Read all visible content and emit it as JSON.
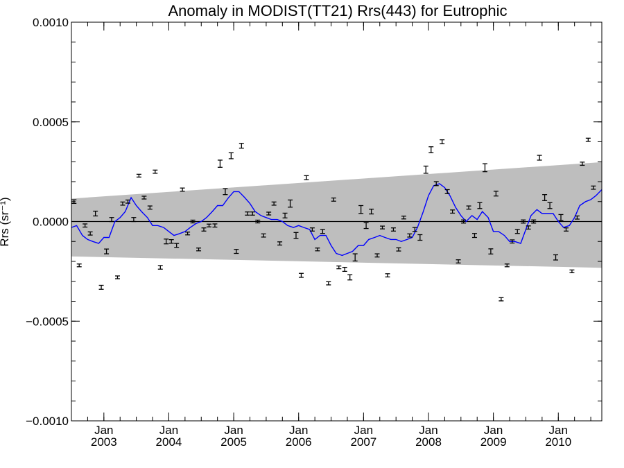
{
  "chart_data": {
    "type": "line",
    "title": "Anomaly in MODIST(TT21) Rrs(443) for Eutrophic",
    "ylabel": "Rrs (sr⁻¹)",
    "xlabel": "",
    "xlim": [
      2002.5,
      2010.67
    ],
    "ylim": [
      -0.001,
      0.001
    ],
    "yticks": [
      "0.0010",
      "0.0005",
      "0.0000",
      "−0.0005",
      "−0.0010"
    ],
    "ytick_values": [
      0.001,
      0.0005,
      0.0,
      -0.0005,
      -0.001
    ],
    "xticks": [
      {
        "month": "Jan",
        "year": "2003",
        "value": 2003
      },
      {
        "month": "Jan",
        "year": "2004",
        "value": 2004
      },
      {
        "month": "Jan",
        "year": "2005",
        "value": 2005
      },
      {
        "month": "Jan",
        "year": "2006",
        "value": 2006
      },
      {
        "month": "Jan",
        "year": "2007",
        "value": 2007
      },
      {
        "month": "Jan",
        "year": "2008",
        "value": 2008
      },
      {
        "month": "Jan",
        "year": "2009",
        "value": 2009
      },
      {
        "month": "Jan",
        "year": "2010",
        "value": 2010
      }
    ],
    "band": {
      "color": "#bebebe",
      "upper": [
        [
          2002.5,
          0.000115
        ],
        [
          2010.67,
          0.000298
        ]
      ],
      "lower": [
        [
          2002.5,
          -0.000175
        ],
        [
          2010.67,
          -0.000232
        ]
      ]
    },
    "zero_line": 0.0,
    "colors": {
      "smoothed": "#0000ff",
      "points": "#000000",
      "band": "#bebebe"
    },
    "series": [
      {
        "values": [
          [
            2002.5,
            -3e-05
          ],
          [
            2002.58,
            -2e-05
          ],
          [
            2002.67,
            -7e-05
          ],
          [
            2002.75,
            -9e-05
          ],
          [
            2002.83,
            -0.0001
          ],
          [
            2002.92,
            -0.00011
          ],
          [
            2003.0,
            -8e-05
          ],
          [
            2003.08,
            -8e-05
          ],
          [
            2003.17,
            0.0
          ],
          [
            2003.25,
            2e-05
          ],
          [
            2003.33,
            5e-05
          ],
          [
            2003.42,
            0.00012
          ],
          [
            2003.5,
            8e-05
          ],
          [
            2003.58,
            5e-05
          ],
          [
            2003.67,
            2e-05
          ],
          [
            2003.75,
            -2e-05
          ],
          [
            2003.83,
            -2e-05
          ],
          [
            2003.92,
            -3e-05
          ],
          [
            2004.0,
            -5e-05
          ],
          [
            2004.08,
            -7e-05
          ],
          [
            2004.17,
            -6e-05
          ],
          [
            2004.25,
            -5e-05
          ],
          [
            2004.33,
            -3e-05
          ],
          [
            2004.42,
            -1e-05
          ],
          [
            2004.5,
            0.0
          ],
          [
            2004.58,
            2e-05
          ],
          [
            2004.67,
            5e-05
          ],
          [
            2004.75,
            8e-05
          ],
          [
            2004.83,
            8e-05
          ],
          [
            2004.92,
            0.00012
          ],
          [
            2005.0,
            0.00015
          ],
          [
            2005.08,
            0.00015
          ],
          [
            2005.17,
            0.00012
          ],
          [
            2005.25,
            9e-05
          ],
          [
            2005.33,
            5e-05
          ],
          [
            2005.42,
            3e-05
          ],
          [
            2005.5,
            2e-05
          ],
          [
            2005.58,
            1e-05
          ],
          [
            2005.67,
            1e-05
          ],
          [
            2005.75,
            0.0
          ],
          [
            2005.83,
            -2e-05
          ],
          [
            2005.92,
            -3e-05
          ],
          [
            2006.0,
            -2e-05
          ],
          [
            2006.08,
            -3e-05
          ],
          [
            2006.17,
            -4e-05
          ],
          [
            2006.25,
            -9e-05
          ],
          [
            2006.33,
            -7e-05
          ],
          [
            2006.42,
            -7e-05
          ],
          [
            2006.5,
            -0.00012
          ],
          [
            2006.58,
            -0.00016
          ],
          [
            2006.67,
            -0.00017
          ],
          [
            2006.75,
            -0.00016
          ],
          [
            2006.83,
            -0.00015
          ],
          [
            2006.92,
            -0.00012
          ],
          [
            2007.0,
            -0.00012
          ],
          [
            2007.08,
            -9e-05
          ],
          [
            2007.17,
            -8e-05
          ],
          [
            2007.25,
            -7e-05
          ],
          [
            2007.33,
            -8e-05
          ],
          [
            2007.42,
            -9e-05
          ],
          [
            2007.5,
            -9e-05
          ],
          [
            2007.58,
            -0.0001
          ],
          [
            2007.67,
            -9e-05
          ],
          [
            2007.75,
            -8e-05
          ],
          [
            2007.83,
            -3e-05
          ],
          [
            2007.92,
            5e-05
          ],
          [
            2008.0,
            0.00013
          ],
          [
            2008.08,
            0.00018
          ],
          [
            2008.17,
            0.00019
          ],
          [
            2008.25,
            0.00017
          ],
          [
            2008.33,
            0.00013
          ],
          [
            2008.42,
            7e-05
          ],
          [
            2008.5,
            3e-05
          ],
          [
            2008.58,
            0.0
          ],
          [
            2008.67,
            3e-05
          ],
          [
            2008.75,
            1e-05
          ],
          [
            2008.83,
            5e-05
          ],
          [
            2008.92,
            2e-05
          ],
          [
            2009.0,
            -5e-05
          ],
          [
            2009.08,
            -5e-05
          ],
          [
            2009.17,
            -7e-05
          ],
          [
            2009.25,
            -0.0001
          ],
          [
            2009.33,
            -0.0001
          ],
          [
            2009.42,
            -0.00011
          ],
          [
            2009.5,
            -4e-05
          ],
          [
            2009.58,
            3e-05
          ],
          [
            2009.67,
            6e-05
          ],
          [
            2009.75,
            4e-05
          ],
          [
            2009.83,
            4e-05
          ],
          [
            2009.92,
            4e-05
          ],
          [
            2010.0,
            0.0
          ],
          [
            2010.08,
            -3e-05
          ],
          [
            2010.17,
            -2e-05
          ],
          [
            2010.25,
            2e-05
          ],
          [
            2010.33,
            8e-05
          ],
          [
            2010.42,
            0.0001
          ],
          [
            2010.5,
            0.00011
          ],
          [
            2010.58,
            0.00013
          ],
          [
            2010.67,
            0.00016
          ]
        ]
      },
      {
        "values": [
          [
            2002.54,
            0.0001,
            5e-06
          ],
          [
            2002.62,
            -0.00022,
            7e-06
          ],
          [
            2002.71,
            -2e-05,
            6e-06
          ],
          [
            2002.79,
            -6e-05,
            8e-06
          ],
          [
            2002.87,
            4e-05,
            1.2e-05
          ],
          [
            2002.96,
            -0.00033,
            1e-05
          ],
          [
            2003.04,
            -0.00015,
            1.2e-05
          ],
          [
            2003.12,
            1e-05,
            1e-05
          ],
          [
            2003.21,
            -0.00028,
            7e-06
          ],
          [
            2003.29,
            9e-05,
            6e-06
          ],
          [
            2003.37,
            0.0001,
            6e-06
          ],
          [
            2003.46,
            1e-05,
            1e-05
          ],
          [
            2003.54,
            0.00023,
            7e-06
          ],
          [
            2003.62,
            0.00012,
            7e-06
          ],
          [
            2003.71,
            7e-05,
            8e-06
          ],
          [
            2003.79,
            0.00025,
            8e-06
          ],
          [
            2003.87,
            -0.00023,
            9e-06
          ],
          [
            2003.96,
            -0.0001,
            1.2e-05
          ],
          [
            2004.04,
            -0.0001,
            9e-06
          ],
          [
            2004.12,
            -0.00012,
            1e-05
          ],
          [
            2004.21,
            0.00016,
            8e-06
          ],
          [
            2004.29,
            -6e-05,
            7e-06
          ],
          [
            2004.37,
            0.0,
            7e-06
          ],
          [
            2004.46,
            -0.00014,
            7e-06
          ],
          [
            2004.54,
            -4e-05,
            8e-06
          ],
          [
            2004.62,
            -2e-05,
            7e-06
          ],
          [
            2004.71,
            -2e-05,
            8e-06
          ],
          [
            2004.79,
            0.00029,
            1.8e-05
          ],
          [
            2004.87,
            0.00015,
            1.5e-05
          ],
          [
            2004.96,
            0.00033,
            1.5e-05
          ],
          [
            2005.04,
            -0.00015,
            1e-05
          ],
          [
            2005.12,
            0.00038,
            1.2e-05
          ],
          [
            2005.21,
            4e-05,
            8e-06
          ],
          [
            2005.29,
            4e-05,
            8e-06
          ],
          [
            2005.37,
            0.0,
            7e-06
          ],
          [
            2005.46,
            -7e-05,
            8e-06
          ],
          [
            2005.54,
            4e-05,
            7e-06
          ],
          [
            2005.62,
            9e-05,
            8e-06
          ],
          [
            2005.71,
            -0.00011,
            8e-06
          ],
          [
            2005.79,
            3e-05,
            1.2e-05
          ],
          [
            2005.87,
            9e-05,
            1.8e-05
          ],
          [
            2005.96,
            -7e-05,
            1.5e-05
          ],
          [
            2006.04,
            -0.00027,
            1e-05
          ],
          [
            2006.12,
            0.00022,
            1e-05
          ],
          [
            2006.21,
            -4e-05,
            8e-06
          ],
          [
            2006.29,
            -0.00014,
            7e-06
          ],
          [
            2006.37,
            -5e-05,
            1e-05
          ],
          [
            2006.46,
            -0.00031,
            6e-06
          ],
          [
            2006.54,
            0.00011,
            8e-06
          ],
          [
            2006.62,
            -0.00023,
            7e-06
          ],
          [
            2006.71,
            -0.00024,
            1e-05
          ],
          [
            2006.79,
            -0.00028,
            1.3e-05
          ],
          [
            2006.87,
            -0.00018,
            1.8e-05
          ],
          [
            2006.96,
            6e-05,
            2e-05
          ],
          [
            2007.04,
            -2e-05,
            1.5e-05
          ],
          [
            2007.12,
            5e-05,
            1.2e-05
          ],
          [
            2007.21,
            -0.00017,
            8e-06
          ],
          [
            2007.29,
            -3e-05,
            7e-06
          ],
          [
            2007.37,
            -0.00027,
            8e-06
          ],
          [
            2007.46,
            -4e-05,
            8e-06
          ],
          [
            2007.54,
            -0.00014,
            8e-06
          ],
          [
            2007.62,
            2e-05,
            7e-06
          ],
          [
            2007.71,
            -7e-05,
            8e-06
          ],
          [
            2007.79,
            -4e-05,
            1e-05
          ],
          [
            2007.87,
            -8e-05,
            1.4e-05
          ],
          [
            2007.96,
            0.00026,
            1.8e-05
          ],
          [
            2008.04,
            0.00036,
            1.5e-05
          ],
          [
            2008.12,
            0.00019,
            1e-05
          ],
          [
            2008.21,
            0.0004,
            1e-05
          ],
          [
            2008.29,
            0.00015,
            1e-05
          ],
          [
            2008.37,
            5e-05,
            8e-06
          ],
          [
            2008.46,
            -0.0002,
            8e-06
          ],
          [
            2008.54,
            0.0,
            8e-06
          ],
          [
            2008.62,
            7e-05,
            8e-06
          ],
          [
            2008.71,
            -7e-05,
            1e-05
          ],
          [
            2008.79,
            8e-05,
            1.5e-05
          ],
          [
            2008.87,
            0.00027,
            2e-05
          ],
          [
            2008.96,
            -0.00015,
            1.3e-05
          ],
          [
            2009.04,
            0.00014,
            1.2e-05
          ],
          [
            2009.12,
            -0.00039,
            8e-06
          ],
          [
            2009.21,
            -0.00022,
            7e-06
          ],
          [
            2009.29,
            -0.0001,
            8e-06
          ],
          [
            2009.37,
            -5e-05,
            1e-05
          ],
          [
            2009.46,
            0.0,
            8e-06
          ],
          [
            2009.54,
            -3e-05,
            8e-06
          ],
          [
            2009.62,
            0.0,
            8e-06
          ],
          [
            2009.71,
            0.00032,
            1.2e-05
          ],
          [
            2009.79,
            0.00012,
            1.5e-05
          ],
          [
            2009.87,
            8e-05,
            1.5e-05
          ],
          [
            2009.96,
            -0.00018,
            1.3e-05
          ],
          [
            2010.04,
            2e-05,
            1.5e-05
          ],
          [
            2010.12,
            -4e-05,
            8e-06
          ],
          [
            2010.21,
            -0.00025,
            7e-06
          ],
          [
            2010.29,
            2e-05,
            6e-06
          ],
          [
            2010.37,
            0.00029,
            8e-06
          ],
          [
            2010.46,
            0.00041,
            8e-06
          ],
          [
            2010.54,
            0.00017,
            8e-06
          ]
        ]
      }
    ]
  }
}
